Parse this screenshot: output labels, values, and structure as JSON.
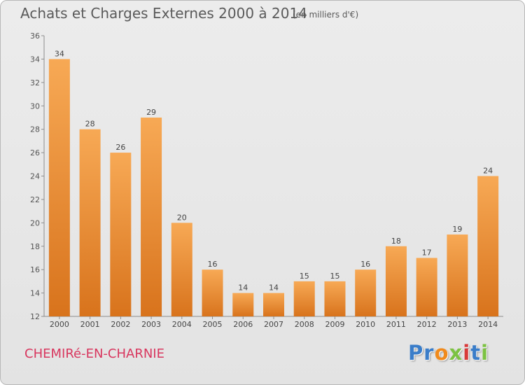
{
  "header": {
    "title": "Achats et Charges Externes 2000 à 2014",
    "subtitle": "(en milliers d'€)"
  },
  "footer": {
    "commune": "CHEMIRé-EN-CHARNIE",
    "logo": "Proxiti"
  },
  "colors": {
    "bar_top": "#f7a955",
    "bar_bottom": "#d8731c",
    "commune": "#d8365e",
    "logo_letters": [
      "#3a7dc9",
      "#3a7dc9",
      "#f08a1c",
      "#7cc242",
      "#d83a3a",
      "#3a7dc9",
      "#7cc242"
    ]
  },
  "chart_data": {
    "type": "bar",
    "title": "Achats et Charges Externes 2000 à 2014",
    "xlabel": "",
    "ylabel": "",
    "categories": [
      "2000",
      "2001",
      "2002",
      "2003",
      "2004",
      "2005",
      "2006",
      "2007",
      "2008",
      "2009",
      "2010",
      "2011",
      "2012",
      "2013",
      "2014"
    ],
    "values": [
      34,
      28,
      26,
      29,
      20,
      16,
      14,
      14,
      15,
      15,
      16,
      18,
      17,
      19,
      24
    ],
    "ylim": [
      12,
      36
    ],
    "yticks": [
      12,
      14,
      16,
      18,
      20,
      22,
      24,
      26,
      28,
      30,
      32,
      34,
      36
    ],
    "grid": false,
    "legend": "none"
  }
}
